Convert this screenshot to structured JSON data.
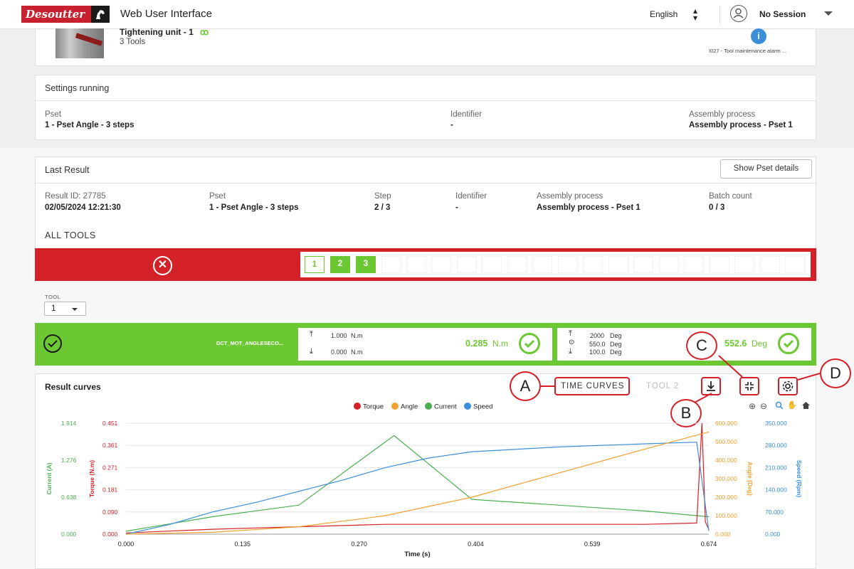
{
  "header": {
    "logo_text": "Desoutter",
    "app_title": "Web User Interface",
    "language": "English",
    "session": "No Session"
  },
  "tool_card": {
    "name": "Tightening unit - 1",
    "tools_count": "3 Tools",
    "alarm": "I027 - Tool maintenance alarm ..."
  },
  "settings": {
    "title": "Settings running",
    "pset_label": "Pset",
    "pset_value": "1 - Pset Angle - 3 steps",
    "identifier_label": "Identifier",
    "identifier_value": "-",
    "assembly_label": "Assembly process",
    "assembly_value": "Assembly process - Pset 1"
  },
  "last_result": {
    "title": "Last Result",
    "show_pset_button": "Show Pset details",
    "result_id_label": "Result ID: 27785",
    "result_date": "02/05/2024 12:21:30",
    "pset_label": "Pset",
    "pset_value": "1 - Pset Angle - 3 steps",
    "step_label": "Step",
    "step_value": "2 / 3",
    "identifier_label": "Identifier",
    "identifier_value": "-",
    "assembly_label": "Assembly process",
    "assembly_value": "Assembly process - Pset 1",
    "batch_label": "Batch count",
    "batch_value": "0 / 3"
  },
  "all_tools": {
    "title": "ALL TOOLS",
    "cycles": [
      "1",
      "2",
      "3"
    ]
  },
  "tool_select": {
    "label": "TOOL",
    "value": "1"
  },
  "result_bar": {
    "name": "DCT_MOT_ANGLESECO...",
    "torque_max": "1.000",
    "torque_min": "0.000",
    "torque_unit": "N.m",
    "torque_value": "0.285",
    "torque_value_unit": "N.m",
    "angle_max": "2000",
    "angle_target": "550.0",
    "angle_min": "100.0",
    "angle_unit": "Deg",
    "angle_value": "552.6",
    "angle_value_unit": "Deg"
  },
  "curves": {
    "title": "Result curves",
    "time_curves": "TIME CURVES",
    "tool2": "TOOL 2",
    "callouts": [
      "A",
      "B",
      "C",
      "D"
    ]
  },
  "chart_data": {
    "type": "line",
    "title": "",
    "xlabel": "Time (s)",
    "x_ticks": [
      "0.000",
      "0.135",
      "0.270",
      "0.404",
      "0.539",
      "0.674"
    ],
    "xlim": [
      0,
      0.674
    ],
    "series": [
      {
        "name": "Torque",
        "color": "#d42027",
        "axis_label": "Torque (N.m)",
        "ticks": [
          "0.000",
          "0.090",
          "0.181",
          "0.271",
          "0.361",
          "0.451"
        ],
        "ylim": [
          0,
          0.451
        ],
        "x": [
          0,
          0.1,
          0.2,
          0.3,
          0.4,
          0.5,
          0.6,
          0.66,
          0.666,
          0.67,
          0.674
        ],
        "y": [
          0.005,
          0.02,
          0.03,
          0.04,
          0.04,
          0.04,
          0.04,
          0.045,
          0.45,
          0.05,
          0.02
        ]
      },
      {
        "name": "Angle",
        "color": "#f0a030",
        "axis_label": "Angle (Deg)",
        "ticks": [
          "0.000",
          "100.000",
          "200.000",
          "300.000",
          "400.000",
          "500.000",
          "600.000"
        ],
        "ylim": [
          0,
          600
        ],
        "x": [
          0,
          0.1,
          0.2,
          0.3,
          0.4,
          0.5,
          0.6,
          0.674
        ],
        "y": [
          0,
          10,
          40,
          100,
          200,
          330,
          460,
          552.6
        ]
      },
      {
        "name": "Current",
        "color": "#4caf50",
        "axis_label": "Current (A)",
        "ticks": [
          "0.000",
          "0.638",
          "1.276",
          "1.914"
        ],
        "ylim": [
          0,
          1.914
        ],
        "x": [
          0,
          0.1,
          0.2,
          0.31,
          0.4,
          0.5,
          0.6,
          0.674
        ],
        "y": [
          0.05,
          0.3,
          0.5,
          1.7,
          0.6,
          0.5,
          0.4,
          0.3
        ]
      },
      {
        "name": "Speed",
        "color": "#3a8fd8",
        "axis_label": "Speed (Rpm)",
        "ticks": [
          "0.000",
          "70.000",
          "140.000",
          "210.000",
          "280.000",
          "350.000"
        ],
        "ylim": [
          0,
          350
        ],
        "x": [
          0,
          0.05,
          0.1,
          0.15,
          0.2,
          0.25,
          0.3,
          0.35,
          0.4,
          0.5,
          0.6,
          0.66,
          0.674
        ],
        "y": [
          0,
          30,
          70,
          100,
          135,
          170,
          210,
          240,
          260,
          275,
          285,
          290,
          10
        ]
      }
    ],
    "legend": "top-center",
    "grid": true
  }
}
